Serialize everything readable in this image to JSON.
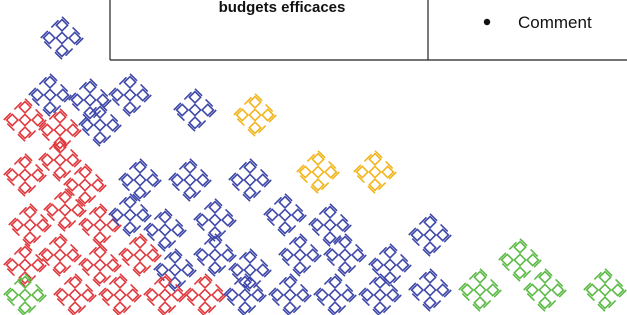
{
  "table": {
    "rows": [
      [
        "budgets efficaces",
        "Comment"
      ]
    ]
  }
}
